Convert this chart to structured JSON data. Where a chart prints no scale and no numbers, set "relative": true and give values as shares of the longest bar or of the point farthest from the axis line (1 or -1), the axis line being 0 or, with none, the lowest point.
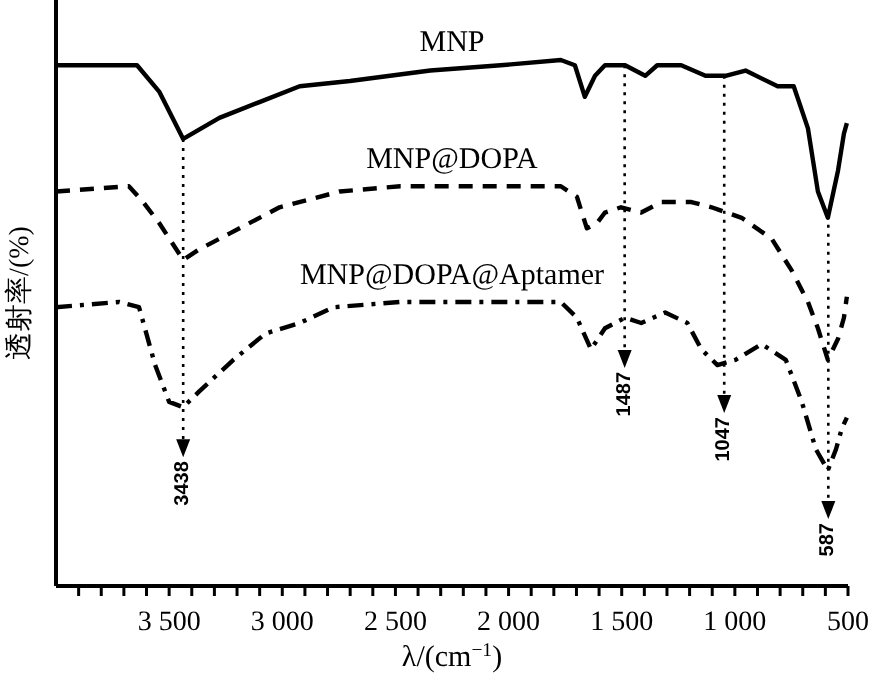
{
  "chart_data": {
    "type": "line",
    "relative": true,
    "xlabel": "λ/(cm$^{−1}$)",
    "ylabel": "透射率/(%)",
    "xlim": [
      4000,
      500
    ],
    "xticks": [
      {
        "value": 3900,
        "label": null
      },
      {
        "value": 3800,
        "label": null
      },
      {
        "value": 3700,
        "label": null
      },
      {
        "value": 3600,
        "label": null
      },
      {
        "value": 3500,
        "label": "3 500"
      },
      {
        "value": 3400,
        "label": null
      },
      {
        "value": 3300,
        "label": null
      },
      {
        "value": 3200,
        "label": null
      },
      {
        "value": 3100,
        "label": null
      },
      {
        "value": 3000,
        "label": "3 000"
      },
      {
        "value": 2900,
        "label": null
      },
      {
        "value": 2800,
        "label": null
      },
      {
        "value": 2700,
        "label": null
      },
      {
        "value": 2600,
        "label": null
      },
      {
        "value": 2500,
        "label": "2 500"
      },
      {
        "value": 2400,
        "label": null
      },
      {
        "value": 2300,
        "label": null
      },
      {
        "value": 2200,
        "label": null
      },
      {
        "value": 2100,
        "label": null
      },
      {
        "value": 2000,
        "label": "2 000"
      },
      {
        "value": 1900,
        "label": null
      },
      {
        "value": 1800,
        "label": null
      },
      {
        "value": 1700,
        "label": null
      },
      {
        "value": 1600,
        "label": null
      },
      {
        "value": 1500,
        "label": "1 500"
      },
      {
        "value": 1400,
        "label": null
      },
      {
        "value": 1300,
        "label": null
      },
      {
        "value": 1200,
        "label": null
      },
      {
        "value": 1100,
        "label": null
      },
      {
        "value": 1000,
        "label": "1 000"
      },
      {
        "value": 900,
        "label": null
      },
      {
        "value": 800,
        "label": null
      },
      {
        "value": 700,
        "label": null
      },
      {
        "value": 600,
        "label": null
      },
      {
        "value": 500,
        "label": "500"
      }
    ],
    "tick_labels": "x",
    "grid": false,
    "series": [
      {
        "name": "MNP",
        "color": "#000000",
        "line_style": "solid",
        "x": [
          4000,
          3642,
          3544,
          3438,
          3278,
          3101,
          2923,
          2701,
          2346,
          2035,
          1769,
          1707,
          1663,
          1618,
          1574,
          1485,
          1396,
          1343,
          1237,
          1130,
          1041,
          953,
          811,
          740,
          677,
          633,
          589,
          544,
          518,
          505
        ],
        "values": [
          0.99,
          0.99,
          0.94,
          0.85,
          0.89,
          0.92,
          0.95,
          0.96,
          0.98,
          0.99,
          1.0,
          0.99,
          0.93,
          0.97,
          0.99,
          0.99,
          0.97,
          0.99,
          0.99,
          0.97,
          0.97,
          0.98,
          0.95,
          0.95,
          0.87,
          0.75,
          0.7,
          0.79,
          0.86,
          0.88
        ]
      },
      {
        "name": "MNP@DOPA",
        "color": "#000000",
        "line_style": "dashed",
        "x": [
          4000,
          3678,
          3615,
          3544,
          3438,
          3367,
          3234,
          3012,
          2746,
          2479,
          1769,
          1698,
          1654,
          1609,
          1574,
          1503,
          1414,
          1325,
          1192,
          1103,
          970,
          837,
          749,
          677,
          633,
          589,
          544,
          518,
          505
        ],
        "values": [
          0.75,
          0.76,
          0.73,
          0.69,
          0.62,
          0.64,
          0.67,
          0.72,
          0.75,
          0.76,
          0.76,
          0.74,
          0.68,
          0.69,
          0.71,
          0.72,
          0.71,
          0.73,
          0.73,
          0.72,
          0.7,
          0.66,
          0.6,
          0.54,
          0.49,
          0.43,
          0.47,
          0.51,
          0.55
        ]
      },
      {
        "name": "MNP@DOPA@Aptamer",
        "color": "#000000",
        "line_style": "dashdot",
        "x": [
          4000,
          3722,
          3633,
          3562,
          3500,
          3438,
          3367,
          3216,
          3074,
          2923,
          2772,
          2479,
          1769,
          1698,
          1636,
          1574,
          1485,
          1414,
          1308,
          1210,
          1148,
          1077,
          997,
          882,
          775,
          704,
          642,
          589,
          553,
          527,
          505
        ],
        "values": [
          0.53,
          0.54,
          0.53,
          0.42,
          0.35,
          0.34,
          0.37,
          0.43,
          0.48,
          0.5,
          0.53,
          0.54,
          0.54,
          0.51,
          0.45,
          0.49,
          0.51,
          0.5,
          0.52,
          0.5,
          0.45,
          0.42,
          0.43,
          0.46,
          0.43,
          0.35,
          0.26,
          0.22,
          0.26,
          0.3,
          0.32
        ]
      }
    ],
    "ref_lines": [
      {
        "axis": "x",
        "value": 3438,
        "label": "3438",
        "line_style": "dotted"
      },
      {
        "axis": "x",
        "value": 1487,
        "label": "1487",
        "line_style": "dotted"
      },
      {
        "axis": "x",
        "value": 1047,
        "label": "1047",
        "line_style": "dotted"
      },
      {
        "axis": "x",
        "value": 587,
        "label": "587",
        "line_style": "dotted"
      }
    ]
  }
}
